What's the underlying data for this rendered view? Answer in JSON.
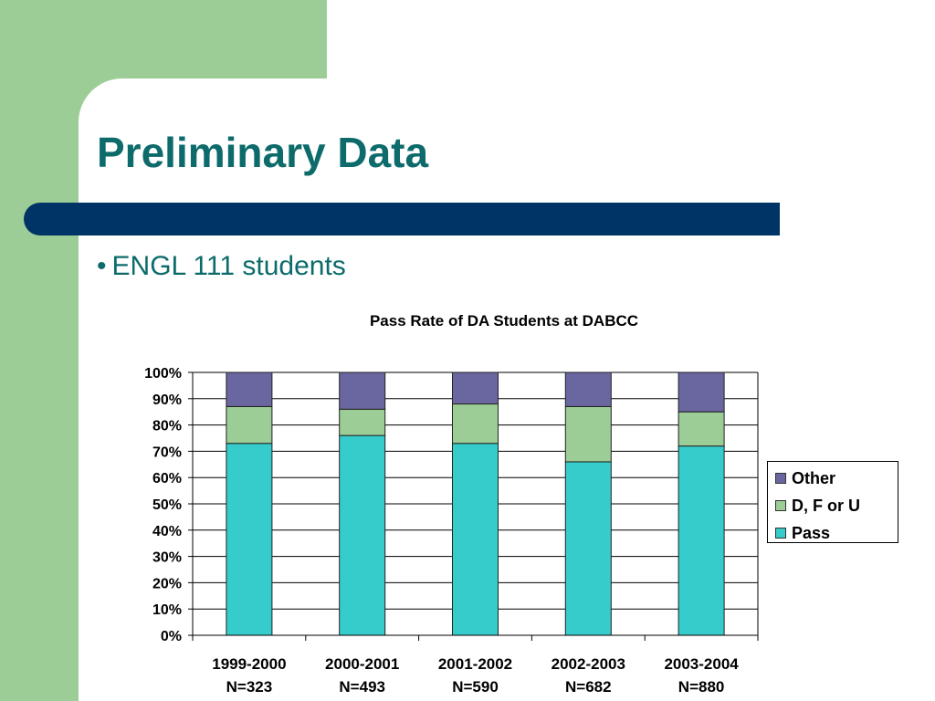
{
  "slide": {
    "title": "Preliminary Data",
    "bullet": "ENGL 111 students"
  },
  "colors": {
    "background_green": "#9dcd96",
    "title_teal": "#0d6b6b",
    "bar_navy": "#003366"
  },
  "chart_data": {
    "type": "bar",
    "stacked": true,
    "title": "Pass Rate of DA Students at DABCC",
    "categories": [
      [
        "1999-2000",
        "N=323"
      ],
      [
        "2000-2001",
        "N=493"
      ],
      [
        "2001-2002",
        "N=590"
      ],
      [
        "2002-2003",
        "N=682"
      ],
      [
        "2003-2004",
        "N=880"
      ]
    ],
    "series": [
      {
        "name": "Pass",
        "color": "#36cccc",
        "values": [
          73,
          76,
          73,
          66,
          72
        ]
      },
      {
        "name": "D, F or U",
        "color": "#9dcd96",
        "values": [
          14,
          10,
          15,
          21,
          13
        ]
      },
      {
        "name": "Other",
        "color": "#6a67a0",
        "values": [
          13,
          14,
          12,
          13,
          15
        ]
      }
    ],
    "yticks": [
      "0%",
      "10%",
      "20%",
      "30%",
      "40%",
      "50%",
      "60%",
      "70%",
      "80%",
      "90%",
      "100%"
    ],
    "ylim": [
      0,
      100
    ],
    "grid": true,
    "legend": [
      {
        "name": "Other",
        "color": "#6a67a0"
      },
      {
        "name": "D, F or U",
        "color": "#9dcd96"
      },
      {
        "name": "Pass",
        "color": "#36cccc"
      }
    ],
    "legend_position": "right"
  }
}
